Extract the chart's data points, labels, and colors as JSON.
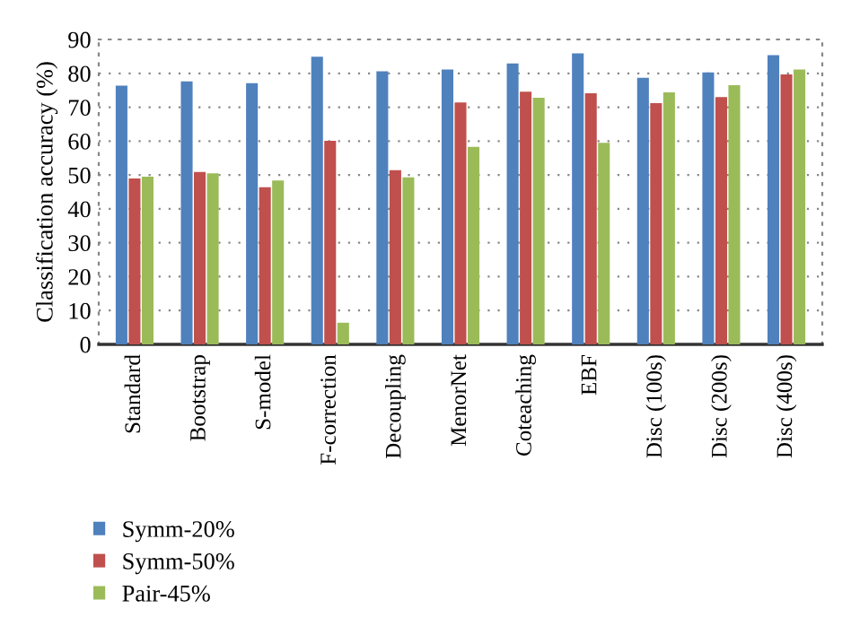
{
  "chart_data": {
    "type": "bar",
    "ylabel": "Classification accuracy (%)",
    "categories": [
      "Standard",
      "Bootstrap",
      "S-model",
      "F-correction",
      "Decoupling",
      "MenorNet",
      "Coteaching",
      "EBF",
      "Disc (100s)",
      "Disc (200s)",
      "Disc (400s)"
    ],
    "series": [
      {
        "name": "Symm-20%",
        "color": "#4f81bd",
        "values": [
          76.4,
          77.6,
          77.1,
          84.9,
          80.6,
          81.1,
          82.9,
          85.9,
          78.7,
          80.3,
          85.4
        ]
      },
      {
        "name": "Symm-50%",
        "color": "#c0504d",
        "values": [
          49.0,
          50.9,
          46.4,
          60.1,
          51.4,
          71.4,
          74.6,
          74.1,
          71.2,
          73.0,
          79.7
        ]
      },
      {
        "name": "Pair-45%",
        "color": "#9bbb59",
        "values": [
          49.5,
          50.5,
          48.4,
          6.4,
          49.3,
          58.3,
          72.8,
          59.5,
          74.4,
          76.5,
          81.1
        ]
      }
    ],
    "ylim": [
      0,
      90
    ],
    "yticks": [
      0,
      10,
      20,
      30,
      40,
      50,
      60,
      70,
      80,
      90
    ],
    "grid": "y",
    "line_style": "dotted",
    "legend": "bottom left"
  }
}
